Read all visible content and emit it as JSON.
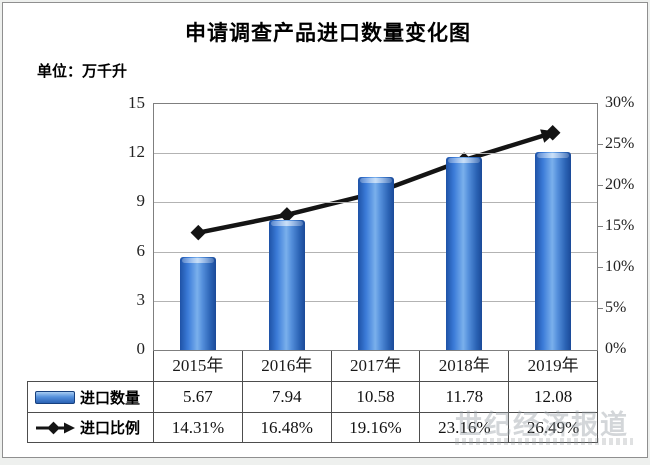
{
  "title": "申请调查产品进口数量变化图",
  "unit_label": "单位：万千升",
  "watermark_text": "世纪经济报道",
  "colors": {
    "bar_mid": "#3b7bd8",
    "bar_edge": "#1e52a6",
    "bar_highlight": "#7ab0ec",
    "line": "#141414",
    "grid": "#b3b3b3",
    "plot_border": "#7f7f7f",
    "table_border": "#4d4d4d"
  },
  "chart_data": {
    "type": "combo-bar-line",
    "title": "申请调查产品进口数量变化图",
    "categories": [
      "2015年",
      "2016年",
      "2017年",
      "2018年",
      "2019年"
    ],
    "series": [
      {
        "name": "进口数量",
        "type": "bar",
        "axis": "left",
        "values": [
          5.67,
          7.94,
          10.58,
          11.78,
          12.08
        ],
        "labels": [
          "5.67",
          "7.94",
          "10.58",
          "11.78",
          "12.08"
        ],
        "legend_icon": "blue-bar-swatch"
      },
      {
        "name": "进口比例",
        "type": "line",
        "axis": "right",
        "values": [
          14.31,
          16.48,
          19.16,
          23.16,
          26.49
        ],
        "labels": [
          "14.31%",
          "16.48%",
          "19.16%",
          "23.16%",
          "26.49%"
        ],
        "legend_icon": "black-arrow-line"
      }
    ],
    "left_axis": {
      "min": 0,
      "max": 15,
      "ticks": [
        "15",
        "12",
        "9",
        "6",
        "3",
        "0"
      ]
    },
    "right_axis": {
      "min": 0,
      "max": 30,
      "ticks": [
        "30%",
        "25%",
        "20%",
        "15%",
        "10%",
        "5%",
        "0%"
      ]
    },
    "grid": true,
    "legend_position": "data-table-left"
  }
}
